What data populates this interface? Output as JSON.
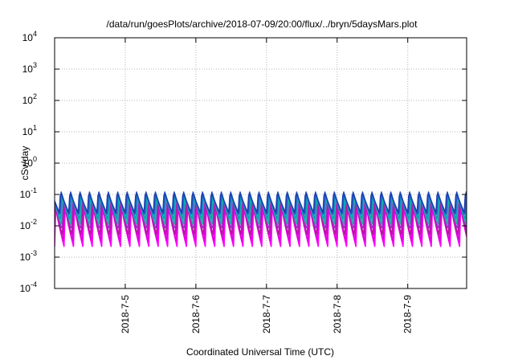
{
  "chart_data": {
    "type": "line",
    "title": "/data/run/goesPlots/archive/2018-07-09/20:00/flux/../bryn/5daysMars.plot",
    "xlabel": "Coordinated Universal Time (UTC)",
    "ylabel": "cSv/day",
    "yscale": "log",
    "ylim": [
      0.0001,
      10000
    ],
    "xlim": [
      "2018-07-04 00:00",
      "2018-07-09 20:00"
    ],
    "x_ticks": [
      "2018-7-5",
      "2018-7-6",
      "2018-7-7",
      "2018-7-8",
      "2018-7-9"
    ],
    "y_ticks": [
      {
        "value": 0.0001,
        "base": "10",
        "exp": "-4"
      },
      {
        "value": 0.001,
        "base": "10",
        "exp": "-3"
      },
      {
        "value": 0.01,
        "base": "10",
        "exp": "-2"
      },
      {
        "value": 0.1,
        "base": "10",
        "exp": "-1"
      },
      {
        "value": 1,
        "base": "10",
        "exp": "0"
      },
      {
        "value": 10,
        "base": "10",
        "exp": "1"
      },
      {
        "value": 100,
        "base": "10",
        "exp": "2"
      },
      {
        "value": 1000,
        "base": "10",
        "exp": "3"
      },
      {
        "value": 10000,
        "base": "10",
        "exp": "4"
      }
    ],
    "grid": true,
    "legend": "none",
    "series": [
      {
        "color": "#ff00ff",
        "peak": 0.04,
        "trough": 0.0022
      },
      {
        "color": "#e000e0",
        "peak": 0.055,
        "trough": 0.003
      },
      {
        "color": "#b5179e",
        "peak": 0.065,
        "trough": 0.0045
      },
      {
        "color": "#9b30c8",
        "peak": 0.085,
        "trough": 0.007
      },
      {
        "color": "#20b2aa",
        "peak": 0.095,
        "trough": 0.011
      },
      {
        "color": "#00a5b5",
        "peak": 0.11,
        "trough": 0.015
      },
      {
        "color": "#2f5fd0",
        "peak": 0.12,
        "trough": 0.02
      },
      {
        "color": "#1e3fae",
        "peak": 0.135,
        "trough": 0.026
      }
    ],
    "cycle_hours": 3.2
  }
}
